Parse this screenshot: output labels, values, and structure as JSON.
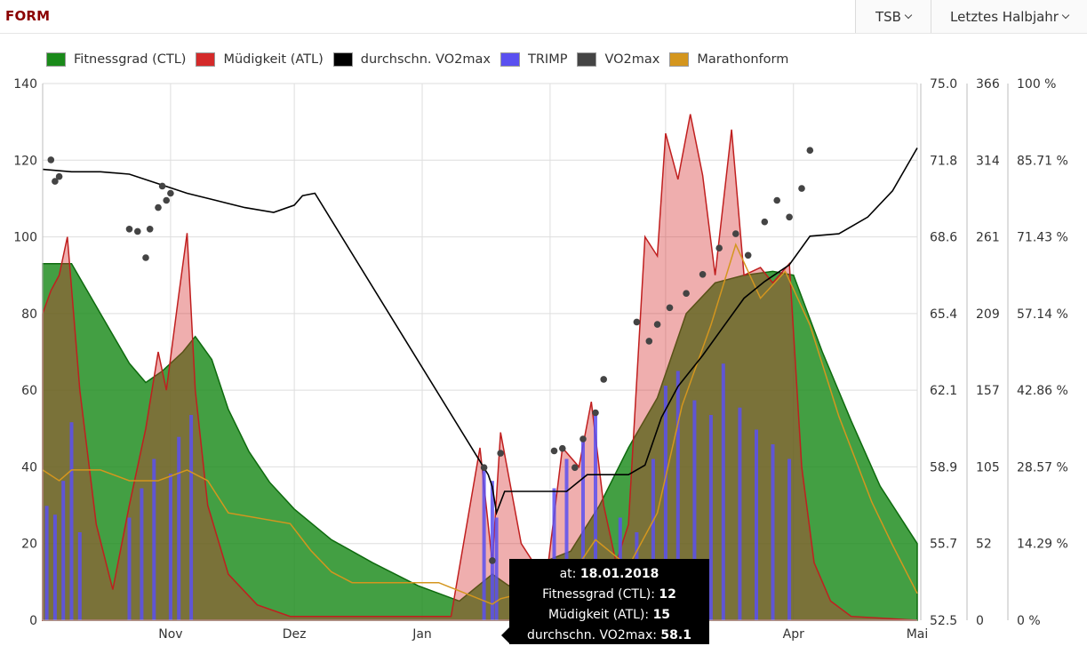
{
  "header": {
    "title": "FORM",
    "metric_dropdown": "TSB",
    "range_dropdown": "Letztes Halbjahr"
  },
  "legend": [
    {
      "label": "Fitnessgrad (CTL)",
      "color": "#1a8a1a"
    },
    {
      "label": "Müdigkeit (ATL)",
      "color": "#d42a2a"
    },
    {
      "label": "durchschn. VO2max",
      "color": "#000000"
    },
    {
      "label": "TRIMP",
      "color": "#5a50f0"
    },
    {
      "label": "VO2max",
      "color": "#444444"
    },
    {
      "label": "Marathonform",
      "color": "#d4961e"
    }
  ],
  "axes": {
    "x_ticks": [
      "Nov",
      "Dez",
      "Jan",
      "Apr",
      "Mai"
    ],
    "y_left_ticks": [
      "0",
      "20",
      "40",
      "60",
      "80",
      "100",
      "120",
      "140"
    ],
    "y_vo2_ticks": [
      "52.5",
      "55.7",
      "58.9",
      "62.1",
      "65.4",
      "68.6",
      "71.8",
      "75.0"
    ],
    "y_trimp_ticks": [
      "0",
      "52",
      "105",
      "157",
      "209",
      "261",
      "314",
      "366"
    ],
    "y_pct_ticks": [
      "0 %",
      "14.29 %",
      "28.57 %",
      "42.86 %",
      "57.14 %",
      "71.43 %",
      "85.71 %",
      "100 %"
    ]
  },
  "tooltip": {
    "date_label": "at:",
    "date": "18.01.2018",
    "ctl_label": "Fitnessgrad (CTL):",
    "ctl": "12",
    "atl_label": "Müdigkeit (ATL):",
    "atl": "15",
    "vo2_label": "durchschn. VO2max:",
    "vo2": "58.1"
  },
  "chart_data": {
    "type": "area",
    "x_axis": {
      "type": "date",
      "min": "2017-10-01",
      "max": "2018-05-01"
    },
    "y_axes": [
      {
        "name": "CTL/ATL",
        "range": [
          0,
          140
        ]
      },
      {
        "name": "VO2max",
        "range": [
          52.5,
          75.0
        ]
      },
      {
        "name": "TRIMP",
        "range": [
          0,
          366
        ]
      },
      {
        "name": "Marathonform",
        "range": [
          0,
          100
        ],
        "unit": "%"
      }
    ],
    "grid": true,
    "legend_position": "top-left",
    "series": [
      {
        "name": "Fitnessgrad (CTL)",
        "axis": 0,
        "type": "area",
        "points": [
          [
            "2017-10-01",
            93
          ],
          [
            "2017-10-08",
            93
          ],
          [
            "2017-10-15",
            80
          ],
          [
            "2017-10-22",
            67
          ],
          [
            "2017-10-26",
            62
          ],
          [
            "2017-10-30",
            65
          ],
          [
            "2017-11-04",
            70
          ],
          [
            "2017-11-07",
            74
          ],
          [
            "2017-11-11",
            68
          ],
          [
            "2017-11-15",
            55
          ],
          [
            "2017-11-20",
            44
          ],
          [
            "2017-11-25",
            36
          ],
          [
            "2017-12-01",
            29
          ],
          [
            "2017-12-10",
            21
          ],
          [
            "2017-12-20",
            15
          ],
          [
            "2017-12-31",
            9
          ],
          [
            "2018-01-10",
            5
          ],
          [
            "2018-01-18",
            12
          ],
          [
            "2018-01-22",
            9
          ],
          [
            "2018-01-30",
            15
          ],
          [
            "2018-02-06",
            18
          ],
          [
            "2018-02-13",
            30
          ],
          [
            "2018-02-20",
            45
          ],
          [
            "2018-02-27",
            58
          ],
          [
            "2018-03-06",
            80
          ],
          [
            "2018-03-13",
            88
          ],
          [
            "2018-03-20",
            90
          ],
          [
            "2018-03-27",
            91
          ],
          [
            "2018-04-01",
            90
          ],
          [
            "2018-04-08",
            70
          ],
          [
            "2018-04-15",
            52
          ],
          [
            "2018-04-22",
            35
          ],
          [
            "2018-05-01",
            20
          ]
        ]
      },
      {
        "name": "Müdigkeit (ATL)",
        "axis": 0,
        "type": "area",
        "points": [
          [
            "2017-10-01",
            80
          ],
          [
            "2017-10-03",
            86
          ],
          [
            "2017-10-05",
            90
          ],
          [
            "2017-10-07",
            100
          ],
          [
            "2017-10-10",
            60
          ],
          [
            "2017-10-14",
            25
          ],
          [
            "2017-10-18",
            8
          ],
          [
            "2017-10-22",
            30
          ],
          [
            "2017-10-26",
            50
          ],
          [
            "2017-10-29",
            70
          ],
          [
            "2017-10-31",
            60
          ],
          [
            "2017-11-03",
            85
          ],
          [
            "2017-11-05",
            101
          ],
          [
            "2017-11-07",
            60
          ],
          [
            "2017-11-10",
            30
          ],
          [
            "2017-11-15",
            12
          ],
          [
            "2017-11-22",
            4
          ],
          [
            "2017-11-30",
            1
          ],
          [
            "2018-01-08",
            1
          ],
          [
            "2018-01-15",
            45
          ],
          [
            "2018-01-18",
            15
          ],
          [
            "2018-01-20",
            49
          ],
          [
            "2018-01-25",
            20
          ],
          [
            "2018-01-31",
            10
          ],
          [
            "2018-02-04",
            45
          ],
          [
            "2018-02-08",
            40
          ],
          [
            "2018-02-11",
            57
          ],
          [
            "2018-02-14",
            30
          ],
          [
            "2018-02-17",
            15
          ],
          [
            "2018-02-20",
            25
          ],
          [
            "2018-02-24",
            100
          ],
          [
            "2018-02-27",
            95
          ],
          [
            "2018-03-01",
            127
          ],
          [
            "2018-03-04",
            115
          ],
          [
            "2018-03-07",
            132
          ],
          [
            "2018-03-10",
            116
          ],
          [
            "2018-03-13",
            90
          ],
          [
            "2018-03-17",
            128
          ],
          [
            "2018-03-20",
            90
          ],
          [
            "2018-03-24",
            92
          ],
          [
            "2018-03-27",
            88
          ],
          [
            "2018-03-31",
            93
          ],
          [
            "2018-04-03",
            40
          ],
          [
            "2018-04-06",
            15
          ],
          [
            "2018-04-10",
            5
          ],
          [
            "2018-04-15",
            1
          ],
          [
            "2018-05-01",
            0
          ]
        ]
      },
      {
        "name": "durchschn. VO2max",
        "axis": 1,
        "type": "line",
        "points": [
          [
            "2017-10-01",
            71.4
          ],
          [
            "2017-10-08",
            71.3
          ],
          [
            "2017-10-15",
            71.3
          ],
          [
            "2017-10-22",
            71.2
          ],
          [
            "2017-10-29",
            70.8
          ],
          [
            "2017-11-05",
            70.4
          ],
          [
            "2017-11-12",
            70.1
          ],
          [
            "2017-11-19",
            69.8
          ],
          [
            "2017-11-26",
            69.6
          ],
          [
            "2017-12-01",
            69.9
          ],
          [
            "2017-12-03",
            70.3
          ],
          [
            "2017-12-06",
            70.4
          ],
          [
            "2018-01-17",
            58.6
          ],
          [
            "2018-01-18",
            58.1
          ],
          [
            "2018-01-19",
            57.0
          ],
          [
            "2018-01-21",
            57.9
          ],
          [
            "2018-02-05",
            57.9
          ],
          [
            "2018-02-10",
            58.6
          ],
          [
            "2018-02-20",
            58.6
          ],
          [
            "2018-02-24",
            59.0
          ],
          [
            "2018-02-28",
            61.0
          ],
          [
            "2018-03-04",
            62.3
          ],
          [
            "2018-03-10",
            63.6
          ],
          [
            "2018-03-15",
            64.8
          ],
          [
            "2018-03-20",
            66.0
          ],
          [
            "2018-03-25",
            66.7
          ],
          [
            "2018-03-31",
            67.4
          ],
          [
            "2018-04-05",
            68.6
          ],
          [
            "2018-04-12",
            68.7
          ],
          [
            "2018-04-19",
            69.4
          ],
          [
            "2018-04-25",
            70.5
          ],
          [
            "2018-05-01",
            72.3
          ]
        ]
      },
      {
        "name": "TRIMP",
        "axis": 2,
        "type": "bar",
        "points": [
          [
            "2017-10-02",
            78
          ],
          [
            "2017-10-04",
            72
          ],
          [
            "2017-10-06",
            95
          ],
          [
            "2017-10-08",
            135
          ],
          [
            "2017-10-10",
            60
          ],
          [
            "2017-10-22",
            70
          ],
          [
            "2017-10-25",
            90
          ],
          [
            "2017-10-28",
            110
          ],
          [
            "2017-11-01",
            100
          ],
          [
            "2017-11-03",
            125
          ],
          [
            "2017-11-06",
            140
          ],
          [
            "2018-01-16",
            105
          ],
          [
            "2018-01-18",
            95
          ],
          [
            "2018-01-19",
            70
          ],
          [
            "2018-02-02",
            90
          ],
          [
            "2018-02-05",
            110
          ],
          [
            "2018-02-09",
            125
          ],
          [
            "2018-02-12",
            140
          ],
          [
            "2018-02-18",
            70
          ],
          [
            "2018-02-22",
            60
          ],
          [
            "2018-02-26",
            110
          ],
          [
            "2018-03-01",
            160
          ],
          [
            "2018-03-04",
            170
          ],
          [
            "2018-03-08",
            150
          ],
          [
            "2018-03-12",
            140
          ],
          [
            "2018-03-15",
            175
          ],
          [
            "2018-03-19",
            145
          ],
          [
            "2018-03-23",
            130
          ],
          [
            "2018-03-27",
            120
          ],
          [
            "2018-03-31",
            110
          ]
        ]
      },
      {
        "name": "VO2max",
        "axis": 1,
        "type": "scatter",
        "points": [
          [
            "2017-10-03",
            71.8
          ],
          [
            "2017-10-04",
            70.9
          ],
          [
            "2017-10-05",
            71.1
          ],
          [
            "2017-10-22",
            68.9
          ],
          [
            "2017-10-24",
            68.8
          ],
          [
            "2017-10-26",
            67.7
          ],
          [
            "2017-10-27",
            68.9
          ],
          [
            "2017-10-29",
            69.8
          ],
          [
            "2017-10-30",
            70.7
          ],
          [
            "2017-10-31",
            70.1
          ],
          [
            "2017-11-01",
            70.4
          ],
          [
            "2018-01-16",
            58.9
          ],
          [
            "2018-01-18",
            55.0
          ],
          [
            "2018-01-20",
            59.5
          ],
          [
            "2018-02-02",
            59.6
          ],
          [
            "2018-02-04",
            59.7
          ],
          [
            "2018-02-07",
            58.9
          ],
          [
            "2018-02-09",
            60.1
          ],
          [
            "2018-02-12",
            61.2
          ],
          [
            "2018-02-14",
            62.6
          ],
          [
            "2018-02-22",
            65.0
          ],
          [
            "2018-02-25",
            64.2
          ],
          [
            "2018-02-27",
            64.9
          ],
          [
            "2018-03-02",
            65.6
          ],
          [
            "2018-03-06",
            66.2
          ],
          [
            "2018-03-10",
            67.0
          ],
          [
            "2018-03-14",
            68.1
          ],
          [
            "2018-03-18",
            68.7
          ],
          [
            "2018-03-21",
            67.8
          ],
          [
            "2018-03-25",
            69.2
          ],
          [
            "2018-03-28",
            70.1
          ],
          [
            "2018-03-31",
            69.4
          ],
          [
            "2018-04-03",
            70.6
          ],
          [
            "2018-04-05",
            72.2
          ]
        ]
      },
      {
        "name": "Marathonform",
        "axis": 3,
        "type": "line",
        "points": [
          [
            "2017-10-01",
            28
          ],
          [
            "2017-10-05",
            26
          ],
          [
            "2017-10-08",
            28
          ],
          [
            "2017-10-15",
            28
          ],
          [
            "2017-10-22",
            26
          ],
          [
            "2017-10-29",
            26
          ],
          [
            "2017-11-05",
            28
          ],
          [
            "2017-11-10",
            26
          ],
          [
            "2017-11-15",
            20
          ],
          [
            "2017-11-30",
            18
          ],
          [
            "2017-12-05",
            13
          ],
          [
            "2017-12-10",
            9
          ],
          [
            "2017-12-15",
            7
          ],
          [
            "2018-01-05",
            7
          ],
          [
            "2018-01-18",
            3
          ],
          [
            "2018-01-20",
            4
          ],
          [
            "2018-02-05",
            7
          ],
          [
            "2018-02-12",
            15
          ],
          [
            "2018-02-20",
            10
          ],
          [
            "2018-02-27",
            20
          ],
          [
            "2018-03-05",
            40
          ],
          [
            "2018-03-12",
            55
          ],
          [
            "2018-03-18",
            70
          ],
          [
            "2018-03-24",
            60
          ],
          [
            "2018-03-30",
            65
          ],
          [
            "2018-04-05",
            55
          ],
          [
            "2018-04-12",
            38
          ],
          [
            "2018-04-20",
            22
          ],
          [
            "2018-04-25",
            14
          ],
          [
            "2018-05-01",
            5
          ]
        ]
      }
    ]
  }
}
